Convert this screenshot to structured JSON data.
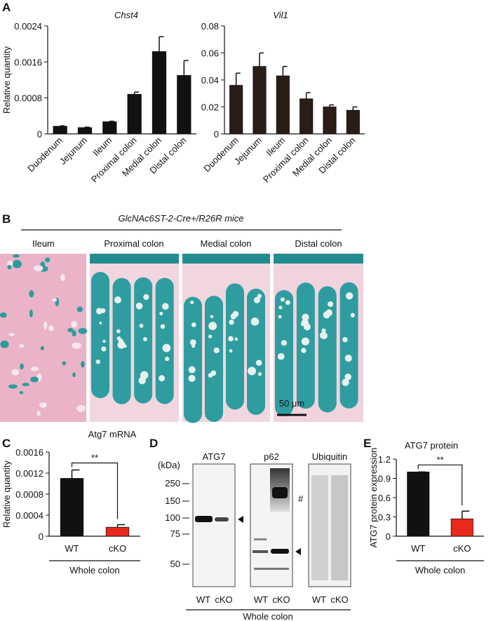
{
  "panel_labels": [
    "A",
    "B",
    "C",
    "D",
    "E"
  ],
  "chart_data": [
    {
      "type": "bar",
      "title": "Chst4",
      "y_label": "Relative quantity",
      "categories": [
        "Duodenum",
        "Jejunum",
        "Ileum",
        "Proximal colon",
        "Medial colon",
        "Distal colon"
      ],
      "values": [
        0.00017,
        0.00014,
        0.00027,
        0.00088,
        0.00183,
        0.0013
      ],
      "errors": [
        1e-05,
        1e-05,
        1e-05,
        5e-05,
        0.00033,
        0.00033
      ],
      "color": "#111111",
      "ylim": [
        0,
        0.0024
      ],
      "yticks": [
        0,
        0.0008,
        0.0016,
        0.0024
      ]
    },
    {
      "type": "bar",
      "title": "Vil1",
      "categories": [
        "Duodenum",
        "Jejunum",
        "Ileum",
        "Proximal colon",
        "Medial colon",
        "Distal colon"
      ],
      "values": [
        0.036,
        0.05,
        0.043,
        0.026,
        0.02,
        0.0175
      ],
      "errors": [
        0.009,
        0.01,
        0.007,
        0.0045,
        0.0015,
        0.0025
      ],
      "color": "#2a1c17",
      "ylim": [
        0,
        0.08
      ],
      "yticks": [
        0,
        0.02,
        0.04,
        0.06,
        0.08
      ]
    },
    {
      "type": "bar",
      "title": "Atg7 mRNA",
      "y_label": "Relative quantity",
      "categories": [
        "WT",
        "cKO"
      ],
      "values": [
        0.0011,
        0.00017
      ],
      "errors": [
        0.00016,
        5e-05
      ],
      "colors": [
        "#111111",
        "#e8291c"
      ],
      "ylim": [
        0,
        0.0016
      ],
      "yticks": [
        0,
        0.0004,
        0.0008,
        0.0012,
        0.0016
      ],
      "significance": "**",
      "group_label": "Whole colon"
    },
    {
      "type": "bar",
      "title": "ATG7 protein",
      "y_label": "ATG7 protein expression",
      "categories": [
        "WT",
        "cKO"
      ],
      "values": [
        1.0,
        0.27
      ],
      "errors": [
        0,
        0.12
      ],
      "colors": [
        "#111111",
        "#e8291c"
      ],
      "ylim": [
        0,
        1.2
      ],
      "yticks": [
        0,
        0.3,
        0.6,
        0.9,
        1.2
      ],
      "significance": "**",
      "group_label": "Whole colon"
    }
  ],
  "histology": {
    "title": "GlcNAc6ST-2-Cre+/R26R mice",
    "labels": [
      "Ileum",
      "Proximal colon",
      "Medial colon",
      "Distal colon"
    ],
    "scale_bar": "50 μm"
  },
  "blot": {
    "unit_label": "(kDa)",
    "markers": [
      "250",
      "150",
      "100",
      "75",
      "50"
    ],
    "antibodies": [
      "ATG7",
      "p62",
      "Ubiquitin"
    ],
    "lanes": [
      "WT",
      "cKO"
    ],
    "annotation": "#",
    "group_label": "Whole colon"
  }
}
